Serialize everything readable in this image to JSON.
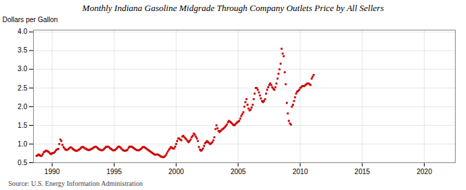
{
  "chart_data": {
    "type": "scatter",
    "title": "Monthly Indiana Gasoline Midgrade Through Company Outlets Price by All Sellers",
    "ylabel": "Dollars per Gallon",
    "annotation": "Source: U.S. Energy Information Administration",
    "color": "#CC0000",
    "marker": "square",
    "grid": true,
    "xlim": [
      1988.5,
      2022.5
    ],
    "xticks": [
      1990,
      1995,
      2000,
      2005,
      2010,
      2015,
      2020
    ],
    "ylim": [
      0.5,
      4.05
    ],
    "yticks": [
      0.5,
      {
        "value": 1.0,
        "label": "1.0"
      },
      1.5,
      {
        "value": 2.0,
        "label": "2.0"
      },
      2.5,
      {
        "value": 3.0,
        "label": "3.0"
      },
      3.5,
      {
        "value": 4.0,
        "label": "4.0"
      }
    ],
    "x": [
      1988.75,
      1988.83,
      1988.92,
      1989.0,
      1989.08,
      1989.17,
      1989.25,
      1989.33,
      1989.42,
      1989.5,
      1989.58,
      1989.67,
      1989.75,
      1989.83,
      1989.92,
      1990.0,
      1990.08,
      1990.17,
      1990.25,
      1990.33,
      1990.42,
      1990.5,
      1990.58,
      1990.67,
      1990.75,
      1990.83,
      1990.92,
      1991.0,
      1991.08,
      1991.17,
      1991.25,
      1991.33,
      1991.42,
      1991.5,
      1991.58,
      1991.67,
      1991.75,
      1991.83,
      1991.92,
      1992.0,
      1992.08,
      1992.17,
      1992.25,
      1992.33,
      1992.42,
      1992.5,
      1992.58,
      1992.67,
      1992.75,
      1992.83,
      1992.92,
      1993.0,
      1993.08,
      1993.17,
      1993.25,
      1993.33,
      1993.42,
      1993.5,
      1993.58,
      1993.67,
      1993.75,
      1993.83,
      1993.92,
      1994.0,
      1994.08,
      1994.17,
      1994.25,
      1994.33,
      1994.42,
      1994.5,
      1994.58,
      1994.67,
      1994.75,
      1994.83,
      1994.92,
      1995.0,
      1995.08,
      1995.17,
      1995.25,
      1995.33,
      1995.42,
      1995.5,
      1995.58,
      1995.67,
      1995.75,
      1995.83,
      1995.92,
      1996.0,
      1996.08,
      1996.17,
      1996.25,
      1996.33,
      1996.42,
      1996.5,
      1996.58,
      1996.67,
      1996.75,
      1996.83,
      1996.92,
      1997.0,
      1997.08,
      1997.17,
      1997.25,
      1997.33,
      1997.42,
      1997.5,
      1997.58,
      1997.67,
      1997.75,
      1997.83,
      1997.92,
      1998.0,
      1998.08,
      1998.17,
      1998.25,
      1998.33,
      1998.42,
      1998.5,
      1998.58,
      1998.67,
      1998.75,
      1998.83,
      1998.92,
      1999.0,
      1999.08,
      1999.17,
      1999.25,
      1999.33,
      1999.42,
      1999.5,
      1999.58,
      1999.67,
      1999.75,
      1999.83,
      1999.92,
      2000.0,
      2000.08,
      2000.17,
      2000.25,
      2000.33,
      2000.42,
      2000.5,
      2000.58,
      2000.67,
      2000.75,
      2000.83,
      2000.92,
      2001.0,
      2001.08,
      2001.17,
      2001.25,
      2001.33,
      2001.42,
      2001.5,
      2001.58,
      2001.67,
      2001.75,
      2001.83,
      2001.92,
      2002.0,
      2002.08,
      2002.17,
      2002.25,
      2002.33,
      2002.42,
      2002.5,
      2002.58,
      2002.67,
      2002.75,
      2002.83,
      2002.92,
      2003.0,
      2003.08,
      2003.17,
      2003.25,
      2003.33,
      2003.42,
      2003.5,
      2003.58,
      2003.67,
      2003.75,
      2003.83,
      2003.92,
      2004.0,
      2004.08,
      2004.17,
      2004.25,
      2004.33,
      2004.42,
      2004.5,
      2004.58,
      2004.67,
      2004.75,
      2004.83,
      2004.92,
      2005.0,
      2005.08,
      2005.17,
      2005.25,
      2005.33,
      2005.42,
      2005.5,
      2005.58,
      2005.67,
      2005.75,
      2005.83,
      2005.92,
      2006.0,
      2006.08,
      2006.17,
      2006.25,
      2006.33,
      2006.42,
      2006.5,
      2006.58,
      2006.67,
      2006.75,
      2006.83,
      2006.92,
      2007.0,
      2007.08,
      2007.17,
      2007.25,
      2007.33,
      2007.42,
      2007.5,
      2007.58,
      2007.67,
      2007.75,
      2007.83,
      2007.92,
      2008.0,
      2008.08,
      2008.17,
      2008.25,
      2008.33,
      2008.42,
      2008.5,
      2008.58,
      2008.67,
      2008.75,
      2008.83,
      2008.92,
      2009.0,
      2009.08,
      2009.17,
      2009.25,
      2009.33,
      2009.42,
      2009.5,
      2009.58,
      2009.67,
      2009.75,
      2009.83,
      2009.92,
      2010.0,
      2010.08,
      2010.17,
      2010.25,
      2010.33,
      2010.42,
      2010.5,
      2010.58,
      2010.67,
      2010.75,
      2010.83,
      2010.92,
      2011.0,
      2011.08
    ],
    "values": [
      0.68,
      0.7,
      0.72,
      0.7,
      0.68,
      0.69,
      0.73,
      0.78,
      0.8,
      0.82,
      0.82,
      0.8,
      0.78,
      0.75,
      0.73,
      0.75,
      0.76,
      0.77,
      0.8,
      0.84,
      0.86,
      0.87,
      1.0,
      1.12,
      1.08,
      0.98,
      0.92,
      0.88,
      0.85,
      0.84,
      0.85,
      0.87,
      0.9,
      0.91,
      0.9,
      0.87,
      0.85,
      0.83,
      0.82,
      0.82,
      0.83,
      0.85,
      0.87,
      0.9,
      0.92,
      0.92,
      0.9,
      0.88,
      0.87,
      0.85,
      0.84,
      0.84,
      0.85,
      0.87,
      0.88,
      0.9,
      0.92,
      0.93,
      0.92,
      0.89,
      0.87,
      0.85,
      0.84,
      0.83,
      0.84,
      0.86,
      0.89,
      0.92,
      0.93,
      0.93,
      0.92,
      0.89,
      0.87,
      0.85,
      0.83,
      0.83,
      0.84,
      0.87,
      0.9,
      0.93,
      0.93,
      0.91,
      0.88,
      0.85,
      0.83,
      0.82,
      0.82,
      0.83,
      0.85,
      0.9,
      0.93,
      0.93,
      0.93,
      0.91,
      0.89,
      0.87,
      0.85,
      0.84,
      0.83,
      0.83,
      0.85,
      0.87,
      0.9,
      0.92,
      0.92,
      0.9,
      0.88,
      0.86,
      0.84,
      0.82,
      0.8,
      0.78,
      0.76,
      0.74,
      0.72,
      0.71,
      0.72,
      0.72,
      0.71,
      0.69,
      0.67,
      0.66,
      0.65,
      0.65,
      0.67,
      0.7,
      0.75,
      0.8,
      0.85,
      0.88,
      0.92,
      0.9,
      0.88,
      0.88,
      0.93,
      1.0,
      1.08,
      1.15,
      1.15,
      1.12,
      1.1,
      1.2,
      1.22,
      1.18,
      1.15,
      1.12,
      1.08,
      1.05,
      1.08,
      1.12,
      1.18,
      1.22,
      1.28,
      1.25,
      1.2,
      1.15,
      1.08,
      0.92,
      0.85,
      0.82,
      0.84,
      0.88,
      0.95,
      1.02,
      1.05,
      1.08,
      1.05,
      1.02,
      1.0,
      1.02,
      1.05,
      1.1,
      1.18,
      1.4,
      1.5,
      1.42,
      1.35,
      1.32,
      1.35,
      1.38,
      1.4,
      1.42,
      1.45,
      1.48,
      1.52,
      1.58,
      1.62,
      1.6,
      1.58,
      1.55,
      1.52,
      1.5,
      1.52,
      1.55,
      1.58,
      1.6,
      1.62,
      1.68,
      1.75,
      1.8,
      1.85,
      2.0,
      2.12,
      2.2,
      2.05,
      1.95,
      1.9,
      1.92,
      1.98,
      2.05,
      2.2,
      2.35,
      2.5,
      2.5,
      2.45,
      2.38,
      2.3,
      2.22,
      2.15,
      2.12,
      2.15,
      2.2,
      2.35,
      2.45,
      2.52,
      2.58,
      2.62,
      2.58,
      2.52,
      2.48,
      2.45,
      2.52,
      2.62,
      2.75,
      2.88,
      3.0,
      3.15,
      3.55,
      3.42,
      3.35,
      2.92,
      2.6,
      2.1,
      1.82,
      1.62,
      1.55,
      1.52,
      2.0,
      2.05,
      2.15,
      2.25,
      2.35,
      2.4,
      2.42,
      2.45,
      2.5,
      2.52,
      2.55,
      2.55,
      2.55,
      2.58,
      2.6,
      2.62,
      2.62,
      2.6,
      2.58,
      2.75,
      2.8,
      2.85
    ]
  }
}
